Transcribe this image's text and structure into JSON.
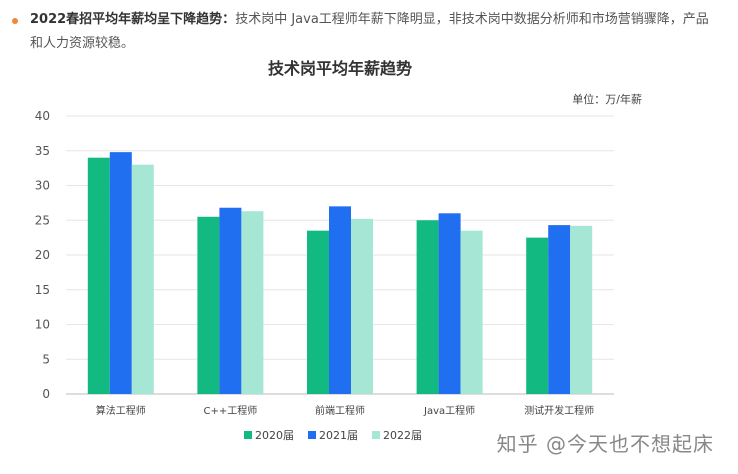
{
  "note": {
    "lead": "2022春招平均年薪均呈下降趋势：",
    "body": "技术岗中 Java工程师年薪下降明显，非技术岗中数据分析师和市场营销骤降，产品和人力资源较稳。"
  },
  "watermark": "知乎 @今天也不想起床",
  "colors": {
    "accent": "#f0883a"
  },
  "chart_data": {
    "type": "bar",
    "title": "技术岗平均年薪趋势",
    "unit_note": "单位：万/年薪",
    "categories": [
      "算法工程师",
      "C++工程师",
      "前端工程师",
      "Java工程师",
      "测试开发工程师"
    ],
    "series": [
      {
        "name": "2020届",
        "color": "#12b981",
        "values": [
          34.0,
          25.5,
          23.5,
          25.0,
          22.5
        ]
      },
      {
        "name": "2021届",
        "color": "#1f6ff0",
        "values": [
          34.8,
          26.8,
          27.0,
          26.0,
          24.3
        ]
      },
      {
        "name": "2022届",
        "color": "#a6e6d5",
        "values": [
          33.0,
          26.3,
          25.2,
          23.5,
          24.2
        ]
      }
    ],
    "ylim": [
      0,
      40
    ],
    "yticks": [
      0,
      5,
      10,
      15,
      20,
      25,
      30,
      35,
      40
    ],
    "grid": true,
    "legend_position": "bottom"
  }
}
